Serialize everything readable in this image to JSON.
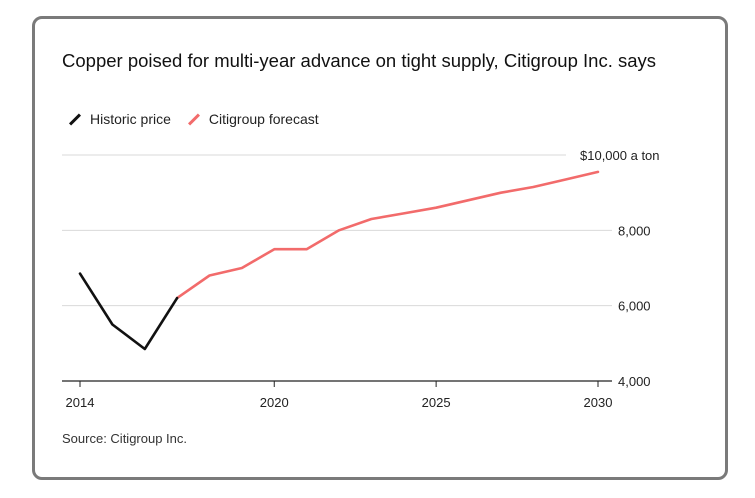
{
  "title": "Copper poised for multi-year advance on tight supply, Citigroup Inc. says",
  "source": "Source: Citigroup Inc.",
  "colors": {
    "historic": "#111111",
    "forecast": "#f26b6b",
    "grid": "#d9d9d9",
    "axis": "#222222"
  },
  "chart_data": {
    "type": "line",
    "title": "Copper poised for multi-year advance on tight supply, Citigroup Inc. says",
    "xlabel": "",
    "ylabel": "",
    "xlim": [
      2014,
      2030
    ],
    "ylim": [
      4000,
      10000
    ],
    "grid": true,
    "legend_position": "top-left",
    "x_ticks": [
      2014,
      2020,
      2025,
      2030
    ],
    "x_tick_labels": [
      "2014",
      "2020",
      "2025",
      "2030"
    ],
    "y_ticks": [
      4000,
      6000,
      8000,
      10000
    ],
    "y_tick_labels": [
      "4,000",
      "6,000",
      "8,000",
      "$10,000 a ton"
    ],
    "series": [
      {
        "name": "Historic price",
        "x": [
          2014,
          2015,
          2016,
          2017
        ],
        "y": [
          6850,
          5500,
          4850,
          6200
        ]
      },
      {
        "name": "Citigroup forecast",
        "x": [
          2017,
          2018,
          2019,
          2020,
          2021,
          2022,
          2023,
          2024,
          2025,
          2026,
          2027,
          2028,
          2029,
          2030
        ],
        "y": [
          6200,
          6800,
          7000,
          7500,
          7500,
          8000,
          8300,
          8450,
          8600,
          8800,
          9000,
          9150,
          9350,
          9550
        ]
      }
    ]
  }
}
